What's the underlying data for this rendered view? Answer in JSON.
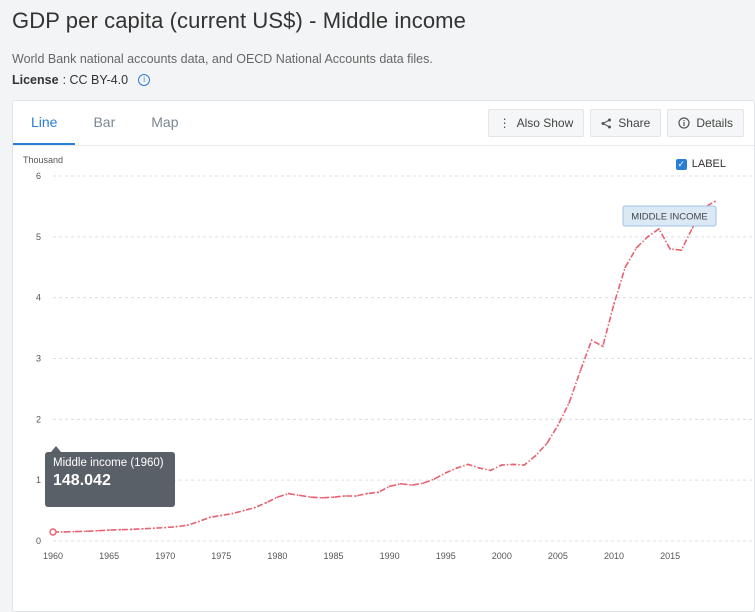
{
  "header": {
    "title": "GDP per capita (current US$) - Middle income",
    "source": "World Bank national accounts data, and OECD National Accounts data files.",
    "license_label": "License",
    "license_value": ": CC BY-4.0"
  },
  "tabs": [
    {
      "label": "Line",
      "active": true
    },
    {
      "label": "Bar",
      "active": false
    },
    {
      "label": "Map",
      "active": false
    }
  ],
  "actions": {
    "also_show": "Also Show",
    "share": "Share",
    "details": "Details"
  },
  "label_toggle": {
    "label": "LABEL",
    "checked": true
  },
  "tooltip": {
    "series": "Middle income (1960)",
    "value": "148.042"
  },
  "colors": {
    "accent": "#2a7fd4",
    "series": "#e8616e"
  },
  "chart_data": {
    "type": "line",
    "ylabel": "Thousand",
    "ylim": [
      0,
      6
    ],
    "yticks": [
      "0",
      "1",
      "2",
      "3",
      "4",
      "5",
      "6"
    ],
    "xlim": [
      1960,
      2019
    ],
    "xticks": [
      "1960",
      "1965",
      "1970",
      "1975",
      "1980",
      "1985",
      "1990",
      "1995",
      "2000",
      "2005",
      "2010",
      "2015"
    ],
    "grid": true,
    "series": [
      {
        "name": "MIDDLE INCOME",
        "x": [
          1960,
          1961,
          1962,
          1963,
          1964,
          1965,
          1966,
          1967,
          1968,
          1969,
          1970,
          1971,
          1972,
          1973,
          1974,
          1975,
          1976,
          1977,
          1978,
          1979,
          1980,
          1981,
          1982,
          1983,
          1984,
          1985,
          1986,
          1987,
          1988,
          1989,
          1990,
          1991,
          1992,
          1993,
          1994,
          1995,
          1996,
          1997,
          1998,
          1999,
          2000,
          2001,
          2002,
          2003,
          2004,
          2005,
          2006,
          2007,
          2008,
          2009,
          2010,
          2011,
          2012,
          2013,
          2014,
          2015,
          2016,
          2017,
          2018,
          2019
        ],
        "y": [
          0.148,
          0.15,
          0.155,
          0.16,
          0.17,
          0.18,
          0.185,
          0.19,
          0.2,
          0.21,
          0.22,
          0.235,
          0.26,
          0.32,
          0.39,
          0.42,
          0.45,
          0.5,
          0.55,
          0.63,
          0.72,
          0.78,
          0.75,
          0.72,
          0.71,
          0.72,
          0.74,
          0.74,
          0.78,
          0.8,
          0.9,
          0.94,
          0.92,
          0.95,
          1.02,
          1.12,
          1.2,
          1.26,
          1.2,
          1.16,
          1.25,
          1.26,
          1.25,
          1.4,
          1.6,
          1.9,
          2.27,
          2.8,
          3.3,
          3.2,
          3.9,
          4.5,
          4.82,
          5.0,
          5.13,
          4.8,
          4.78,
          5.15,
          5.48,
          5.58
        ]
      }
    ]
  }
}
